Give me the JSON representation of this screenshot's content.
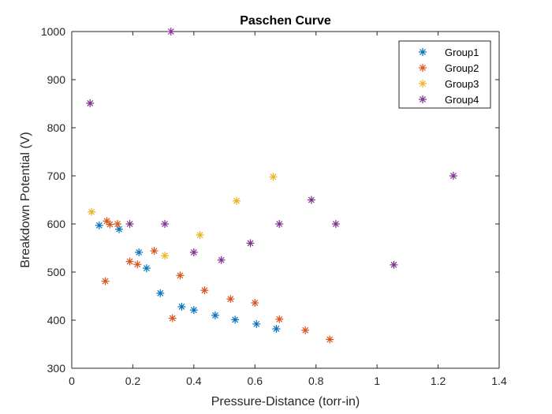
{
  "chart_data": {
    "type": "scatter",
    "title": "Paschen Curve",
    "xlabel": "Pressure-Distance (torr-in)",
    "ylabel": "Breakdown Potential (V)",
    "xlim": [
      0,
      1.4
    ],
    "ylim": [
      300,
      1000
    ],
    "xticks": [
      "0",
      "0.2",
      "0.4",
      "0.6",
      "0.8",
      "1",
      "1.2",
      "1.4"
    ],
    "yticks": [
      "300",
      "400",
      "500",
      "600",
      "700",
      "800",
      "900",
      "1000"
    ],
    "xtick_values": [
      0,
      0.2,
      0.4,
      0.6,
      0.8,
      1.0,
      1.2,
      1.4
    ],
    "ytick_values": [
      300,
      400,
      500,
      600,
      700,
      800,
      900,
      1000
    ],
    "grid": false,
    "legend_position": "top-right",
    "marker": "asterisk",
    "series": [
      {
        "name": "Group1",
        "color": "#0072BD",
        "points": [
          [
            0.09,
            597
          ],
          [
            0.155,
            589
          ],
          [
            0.22,
            541
          ],
          [
            0.245,
            508
          ],
          [
            0.29,
            456
          ],
          [
            0.36,
            428
          ],
          [
            0.4,
            421
          ],
          [
            0.47,
            410
          ],
          [
            0.535,
            401
          ],
          [
            0.605,
            392
          ],
          [
            0.67,
            382
          ]
        ]
      },
      {
        "name": "Group2",
        "color": "#D95319",
        "points": [
          [
            0.11,
            481
          ],
          [
            0.115,
            606
          ],
          [
            0.125,
            599
          ],
          [
            0.15,
            600
          ],
          [
            0.19,
            522
          ],
          [
            0.215,
            516
          ],
          [
            0.27,
            544
          ],
          [
            0.33,
            404
          ],
          [
            0.355,
            493
          ],
          [
            0.435,
            462
          ],
          [
            0.52,
            444
          ],
          [
            0.6,
            436
          ],
          [
            0.68,
            402
          ],
          [
            0.765,
            379
          ],
          [
            0.845,
            360
          ]
        ]
      },
      {
        "name": "Group3",
        "color": "#EDB120",
        "points": [
          [
            0.065,
            625
          ],
          [
            0.305,
            534
          ],
          [
            0.42,
            577
          ],
          [
            0.54,
            648
          ],
          [
            0.66,
            698
          ]
        ]
      },
      {
        "name": "Group4",
        "color": "#7E2F8E",
        "points": [
          [
            0.06,
            851
          ],
          [
            0.19,
            600
          ],
          [
            0.305,
            600
          ],
          [
            0.325,
            1000
          ],
          [
            0.4,
            541
          ],
          [
            0.49,
            525
          ],
          [
            0.585,
            560
          ],
          [
            0.68,
            600
          ],
          [
            0.785,
            650
          ],
          [
            0.865,
            600
          ],
          [
            1.055,
            515
          ],
          [
            1.25,
            700
          ]
        ]
      }
    ]
  }
}
